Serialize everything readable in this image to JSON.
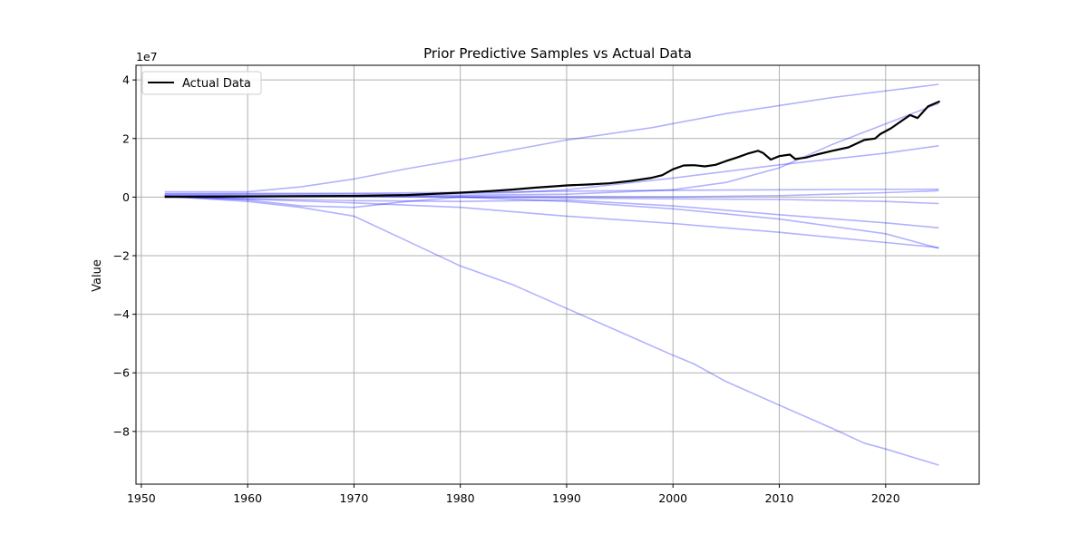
{
  "chart_data": {
    "type": "line",
    "title": "Prior Predictive Samples vs Actual Data",
    "xlabel": "",
    "ylabel": "Value",
    "y_offset_text": "1e7",
    "y_scale": 10000000,
    "xlim": [
      1949.5,
      2028.8
    ],
    "ylim": [
      -98000000,
      45000000
    ],
    "x_ticks": [
      1950,
      1960,
      1970,
      1980,
      1990,
      2000,
      2010,
      2020
    ],
    "y_ticks": [
      -80000000,
      -60000000,
      -40000000,
      -20000000,
      0,
      20000000,
      40000000
    ],
    "y_tick_labels": [
      "−8",
      "−6",
      "−4",
      "−2",
      "0",
      "2",
      "4"
    ],
    "grid": true,
    "legend": {
      "placement": "upper-left",
      "entries": [
        "Actual Data"
      ]
    },
    "colors": {
      "actual": "#000000",
      "samples": "#0000ff",
      "grid": "#b0b0b0"
    },
    "samples_opacity": 0.3,
    "series": [
      {
        "name": "Actual Data",
        "x": [
          1952.2,
          1955,
          1960,
          1965,
          1970,
          1975,
          1980,
          1983,
          1985,
          1987,
          1989,
          1990,
          1992,
          1994,
          1996,
          1998,
          1999,
          2000,
          2001,
          2002,
          2003,
          2004,
          2005,
          2006,
          2007,
          2008,
          2008.5,
          2009.2,
          2010,
          2011,
          2011.5,
          2012.5,
          2013.5,
          2015,
          2016.5,
          2018,
          2019,
          2019.5,
          2020.5,
          2021.5,
          2022.3,
          2023,
          2024,
          2025.1
        ],
        "y": [
          100000,
          150000,
          200000,
          300000,
          400000,
          700000,
          1500000,
          2100000,
          2600000,
          3200000,
          3700000,
          4000000,
          4300000,
          4700000,
          5500000,
          6600000,
          7500000,
          9500000,
          10800000,
          10900000,
          10500000,
          11000000,
          12300000,
          13500000,
          14800000,
          15800000,
          15000000,
          12800000,
          14000000,
          14500000,
          13000000,
          13500000,
          14500000,
          15800000,
          17000000,
          19500000,
          20000000,
          21500000,
          23500000,
          26000000,
          28000000,
          27000000,
          31000000,
          32700000
        ]
      },
      {
        "x": [
          1952.2,
          1960,
          1965,
          1970,
          1975,
          1980,
          1990,
          1998,
          2005,
          2015,
          2025
        ],
        "y": [
          1800000,
          1800000,
          3500000,
          6200000,
          9700000,
          12800000,
          19500000,
          23700000,
          28500000,
          34000000,
          38500000
        ]
      },
      {
        "x": [
          1952.2,
          1965,
          1975,
          1990,
          2000,
          2005,
          2010,
          2015,
          2020,
          2025
        ],
        "y": [
          600000,
          500000,
          500000,
          1000000,
          2500000,
          5000000,
          10000000,
          18000000,
          25000000,
          32000000
        ]
      },
      {
        "x": [
          1952.2,
          1965,
          1975,
          1985,
          1990,
          2000,
          2010,
          2020,
          2025
        ],
        "y": [
          1000000,
          1000000,
          1000000,
          1500000,
          2500000,
          6500000,
          11000000,
          15000000,
          17500000
        ]
      },
      {
        "x": [
          1952.2,
          1970,
          1985,
          1995,
          2005,
          2015,
          2025
        ],
        "y": [
          1200000,
          1300000,
          1800000,
          2200000,
          2400000,
          2600000,
          2700000
        ]
      },
      {
        "x": [
          1952.2,
          1970,
          1990,
          2000,
          2010,
          2020,
          2025
        ],
        "y": [
          400000,
          300000,
          200000,
          100000,
          500000,
          1500000,
          2200000
        ]
      },
      {
        "x": [
          1952.2,
          1970,
          1980,
          1990,
          2000,
          2010,
          2020,
          2025
        ],
        "y": [
          300000,
          200000,
          0,
          -300000,
          -600000,
          -800000,
          -1500000,
          -2200000
        ]
      },
      {
        "x": [
          1952.2,
          1960,
          1970,
          1980,
          1990,
          2000,
          2010,
          2020,
          2025
        ],
        "y": [
          200000,
          -500000,
          -1200000,
          -1500000,
          -1000000,
          -3000000,
          -6000000,
          -8800000,
          -10500000
        ]
      },
      {
        "x": [
          1952.2,
          1960,
          1970,
          1980,
          1990,
          2000,
          2010,
          2020,
          2025
        ],
        "y": [
          0,
          -700000,
          -2000000,
          -3500000,
          -6500000,
          -9000000,
          -12000000,
          -15500000,
          -17200000
        ]
      },
      {
        "x": [
          1952.2,
          1960,
          1965,
          1970,
          1975,
          1980,
          1990,
          2000,
          2010,
          2020,
          2025
        ],
        "y": [
          500000,
          -1000000,
          -3000000,
          -3500000,
          -1500000,
          0,
          -1500000,
          -4000000,
          -7500000,
          -12500000,
          -17500000
        ]
      },
      {
        "x": [
          1952.2,
          1960,
          1965,
          1970,
          1975,
          1980,
          1985,
          1990,
          1995,
          2000,
          2002,
          2005,
          2010,
          2015,
          2018,
          2020,
          2025
        ],
        "y": [
          300000,
          -1500000,
          -3500000,
          -6500000,
          -15000000,
          -23500000,
          -30000000,
          -38000000,
          -46000000,
          -54000000,
          -57000000,
          -63000000,
          -71000000,
          -79000000,
          -84000000,
          -86000000,
          -91500000
        ]
      }
    ]
  }
}
